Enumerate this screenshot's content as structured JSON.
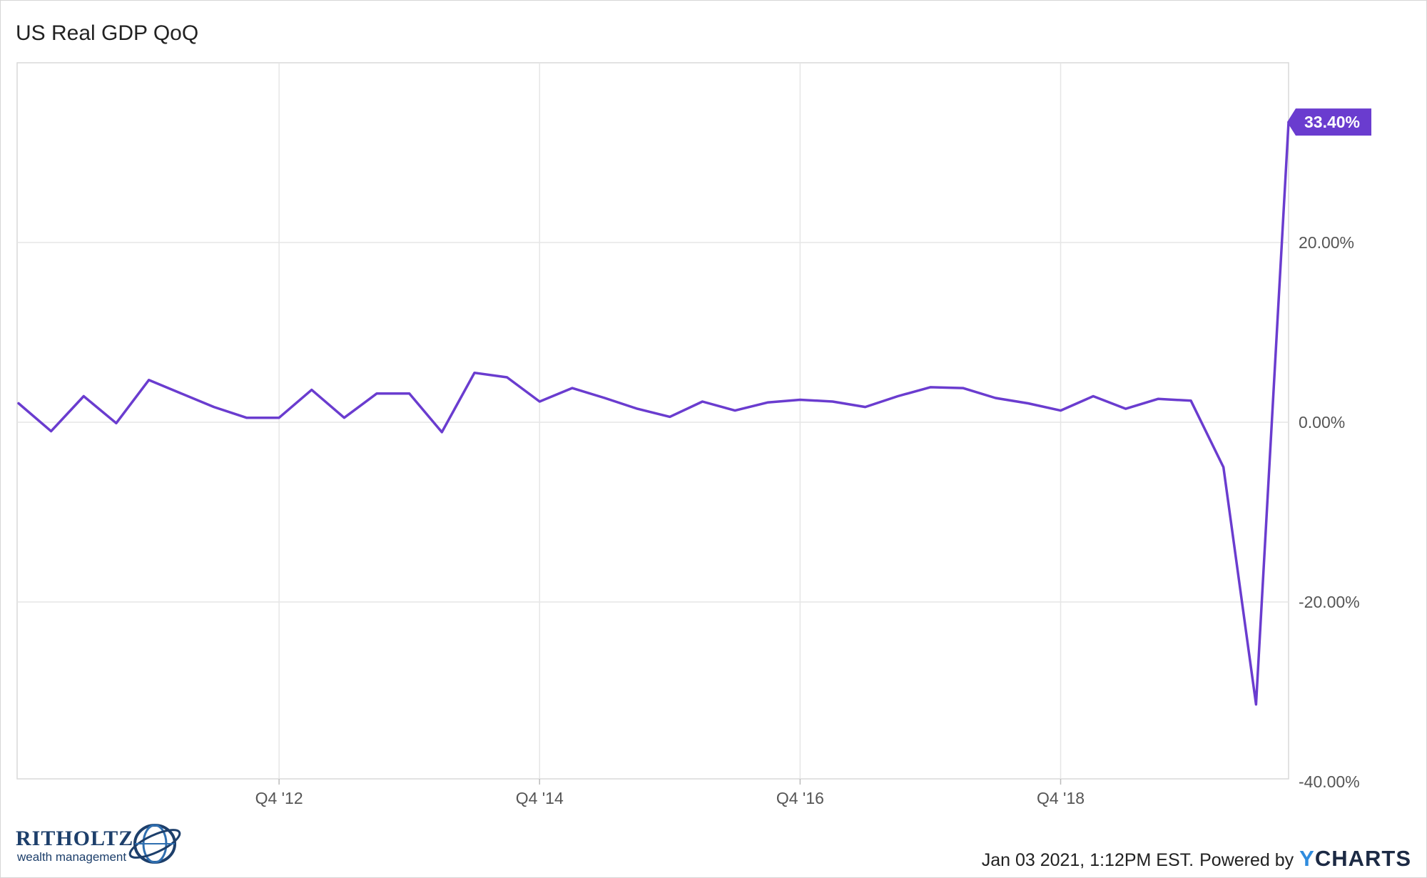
{
  "chart_data": {
    "type": "line",
    "title": "US Real GDP QoQ",
    "x_ticks": [
      "Q4 '12",
      "Q4 '14",
      "Q4 '16",
      "Q4 '18"
    ],
    "y_ticks": [
      "20.00%",
      "0.00%",
      "-20.00%",
      "-40.00%"
    ],
    "y_tick_values": [
      20,
      0,
      -20,
      -40
    ],
    "ylim": [
      -40,
      40
    ],
    "grid": true,
    "series": [
      {
        "color": "#6a3ccf",
        "x": [
          "Q4 '10",
          "Q1 '11",
          "Q2 '11",
          "Q3 '11",
          "Q4 '11",
          "Q1 '12",
          "Q2 '12",
          "Q3 '12",
          "Q4 '12",
          "Q1 '13",
          "Q2 '13",
          "Q3 '13",
          "Q4 '13",
          "Q1 '14",
          "Q2 '14",
          "Q3 '14",
          "Q4 '14",
          "Q1 '15",
          "Q2 '15",
          "Q3 '15",
          "Q4 '15",
          "Q1 '16",
          "Q2 '16",
          "Q3 '16",
          "Q4 '16",
          "Q1 '17",
          "Q2 '17",
          "Q3 '17",
          "Q4 '17",
          "Q1 '18",
          "Q2 '18",
          "Q3 '18",
          "Q4 '18",
          "Q1 '19",
          "Q2 '19",
          "Q3 '19",
          "Q4 '19",
          "Q1 '20",
          "Q2 '20",
          "Q3 '20"
        ],
        "values": [
          2.1,
          -1.0,
          2.9,
          -0.1,
          4.7,
          3.2,
          1.7,
          0.5,
          0.5,
          3.6,
          0.5,
          3.2,
          3.2,
          -1.1,
          5.5,
          5.0,
          2.3,
          3.8,
          2.7,
          1.5,
          0.6,
          2.3,
          1.3,
          2.2,
          2.5,
          2.3,
          1.7,
          2.9,
          3.9,
          3.8,
          2.7,
          2.1,
          1.3,
          2.9,
          1.5,
          2.6,
          2.4,
          -5.0,
          -31.4,
          33.4
        ],
        "last_value_label": "33.40%",
        "last_value_label_color": "#6a3ccf"
      }
    ]
  },
  "branding": {
    "logo_name": "RITHOLTZ",
    "logo_sub": "wealth management"
  },
  "footer": {
    "timestamp": "Jan 03 2021, 1:12PM EST.",
    "powered_by": "Powered by",
    "ycharts_y": "Y",
    "ycharts_rest": "CHARTS"
  }
}
